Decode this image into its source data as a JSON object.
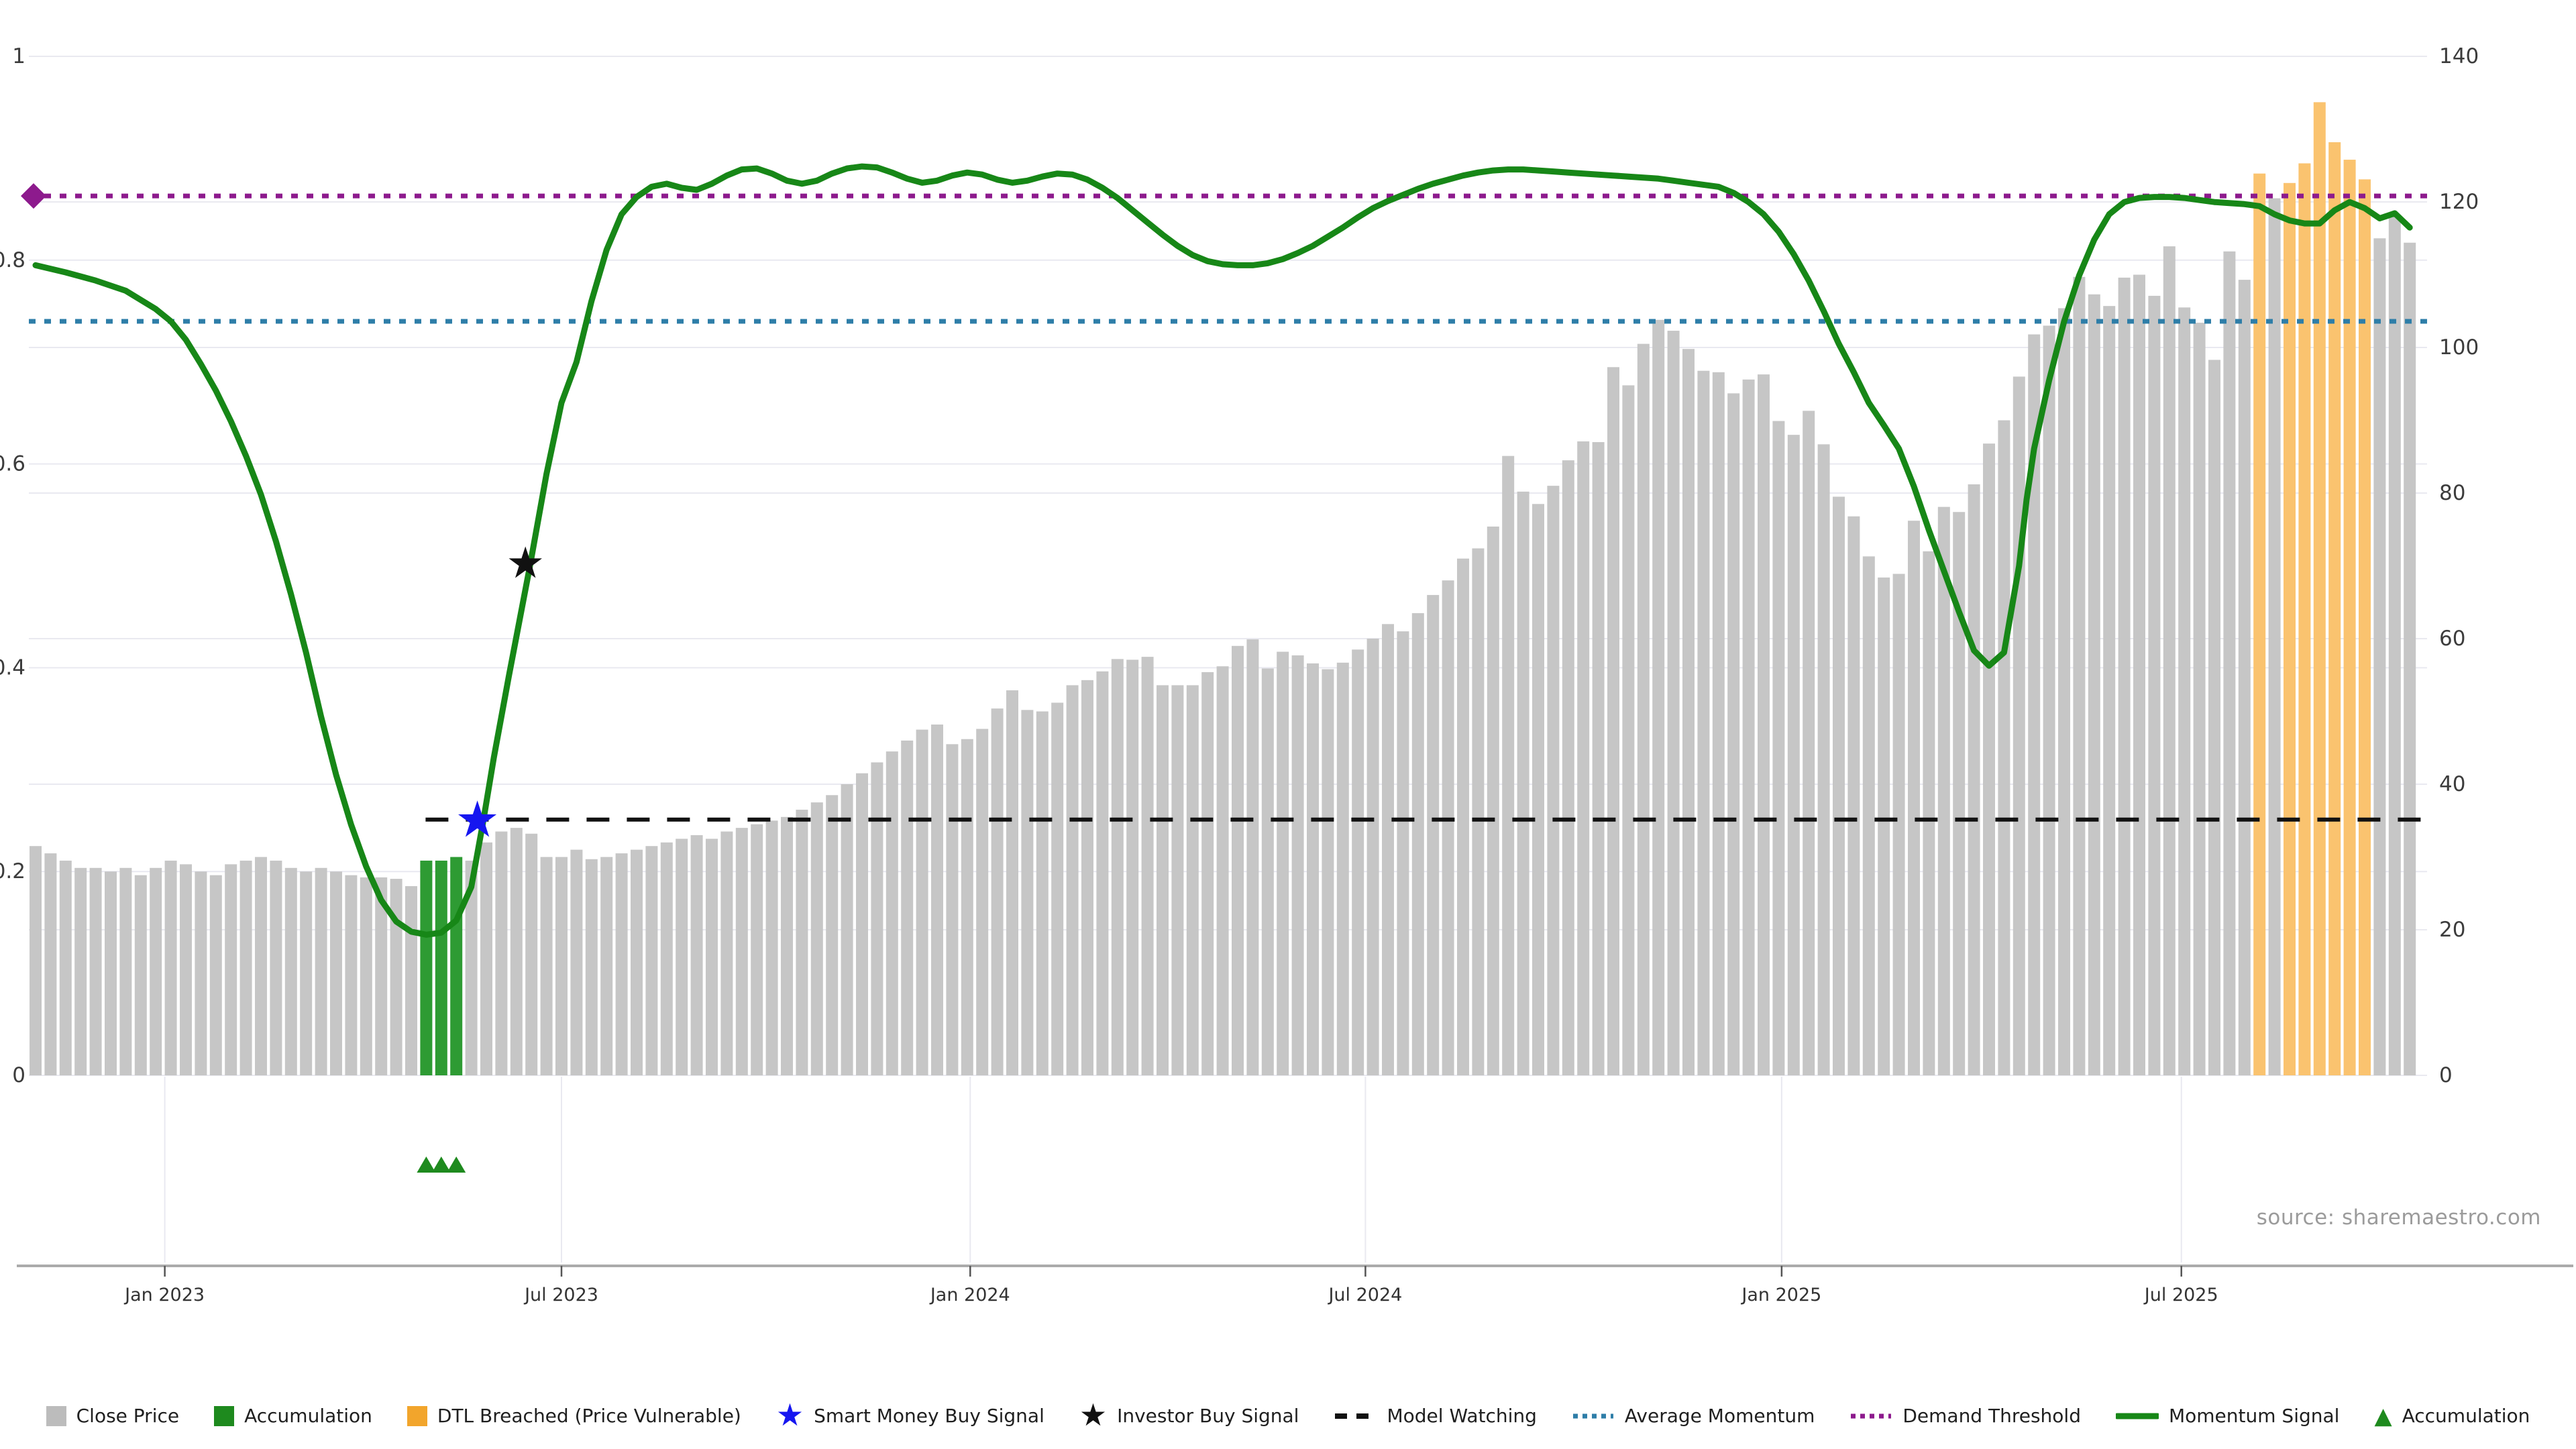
{
  "source_note": "source: sharemaestro.com",
  "colors": {
    "background": "#ffffff",
    "gridline": "#e9e9f0",
    "axis_line": "#ababab",
    "tick_color": "#555555",
    "axis_text": "#3c3c3c",
    "close_price_bar": "#c6c6c6",
    "accumulation_bar": "#2e9b33",
    "dtl_breached_bar": "#fac36f",
    "momentum_line": "#178717",
    "average_momentum_line": "#2e7ea8",
    "demand_threshold_line": "#8d1a8d",
    "model_watching_line": "#111111",
    "smart_money_star": "#1616f0",
    "investor_star": "#111111",
    "accumulation_marker": "#1e8a1e",
    "source_text": "#9b9b9b"
  },
  "chart_data": {
    "type": "bar+line",
    "title": "",
    "xlabel": "",
    "ylabel_left": "",
    "ylabel_right": "",
    "left_axis": {
      "range": [
        0,
        1
      ],
      "ticks": [
        0,
        0.2,
        0.4,
        0.6,
        0.8,
        1
      ],
      "tick_labels": [
        "0",
        "0.2",
        "0.4",
        "0.6",
        "0.8",
        "1"
      ]
    },
    "right_axis": {
      "range": [
        0,
        140
      ],
      "ticks": [
        0,
        20,
        40,
        60,
        80,
        100,
        120,
        140
      ],
      "tick_labels": [
        "0",
        "20",
        "40",
        "60",
        "80",
        "100",
        "120",
        "140"
      ]
    },
    "x_axis": {
      "tick_labels": [
        "Jan 2023",
        "Jul 2023",
        "Jan 2024",
        "Jul 2024",
        "Jan 2025",
        "Jul 2025"
      ],
      "tick_bar_index": [
        8.6,
        35.0,
        62.2,
        88.5,
        116.2,
        142.8
      ]
    },
    "grid": true,
    "legend_position": "bottom-center",
    "close_price": [
      31.5,
      30.5,
      29.5,
      28.5,
      28.5,
      28,
      28.5,
      27.5,
      28.5,
      29.5,
      29,
      28,
      27.5,
      29,
      29.5,
      30,
      29.5,
      28.5,
      28,
      28.5,
      28,
      27.5,
      27.2,
      27.2,
      27,
      26,
      29.5,
      29.5,
      30,
      29.5,
      32,
      33.5,
      34,
      33.2,
      30,
      30,
      31,
      29.7,
      30,
      30.5,
      31,
      31.5,
      32,
      32.5,
      33,
      32.5,
      33.5,
      34,
      34.5,
      35,
      35.5,
      36.5,
      37.5,
      38.5,
      40,
      41.5,
      43,
      44.5,
      46,
      47.5,
      48.2,
      45.5,
      46.2,
      47.6,
      50.4,
      52.9,
      50.2,
      50,
      51.2,
      53.6,
      54.3,
      55.5,
      57.2,
      57.1,
      57.5,
      53.6,
      53.6,
      53.6,
      55.4,
      56.2,
      59,
      59.9,
      55.9,
      58.2,
      57.7,
      56.6,
      55.8,
      56.7,
      58.5,
      60,
      62,
      61,
      63.5,
      66,
      68,
      71,
      72.4,
      75.4,
      85.1,
      80.2,
      78.5,
      81,
      84.5,
      87.1,
      87,
      97.3,
      94.8,
      100.5,
      103.8,
      102.3,
      99.8,
      96.8,
      96.6,
      93.7,
      95.6,
      96.3,
      89.9,
      88,
      91.3,
      86.7,
      79.5,
      76.8,
      71.3,
      68.4,
      68.9,
      76.2,
      72,
      78.1,
      77.4,
      81.2,
      86.8,
      90,
      96,
      101.8,
      103,
      105.4,
      109.7,
      107.3,
      105.7,
      109.6,
      110,
      107.1,
      113.9,
      105.5,
      103.4,
      98.3,
      113.2,
      109.3,
      123.9,
      120.5,
      122.6,
      125.3,
      133.7,
      128.2,
      125.8,
      123.1,
      115,
      118.2,
      114.4
    ],
    "accumulation_bar_indices": [
      26,
      27,
      28
    ],
    "dtl_breached_bar_indices": [
      148,
      150,
      151,
      152,
      153,
      154,
      155
    ],
    "accumulation_marker_indices": [
      26,
      27,
      28
    ],
    "momentum_signal_keypoints": [
      [
        0,
        0.795
      ],
      [
        2,
        0.788
      ],
      [
        4,
        0.78
      ],
      [
        6,
        0.77
      ],
      [
        8,
        0.752
      ],
      [
        9,
        0.74
      ],
      [
        10,
        0.722
      ],
      [
        11,
        0.698
      ],
      [
        12,
        0.672
      ],
      [
        13,
        0.642
      ],
      [
        14,
        0.608
      ],
      [
        15,
        0.57
      ],
      [
        16,
        0.524
      ],
      [
        17,
        0.472
      ],
      [
        18,
        0.415
      ],
      [
        19,
        0.352
      ],
      [
        20,
        0.295
      ],
      [
        21,
        0.246
      ],
      [
        22,
        0.205
      ],
      [
        23,
        0.172
      ],
      [
        24,
        0.151
      ],
      [
        25,
        0.141
      ],
      [
        26,
        0.138
      ],
      [
        27,
        0.14
      ],
      [
        28,
        0.152
      ],
      [
        29,
        0.185
      ],
      [
        29.8,
        0.25
      ],
      [
        30.5,
        0.312
      ],
      [
        31.5,
        0.392
      ],
      [
        32.9,
        0.5
      ],
      [
        34,
        0.59
      ],
      [
        35,
        0.66
      ],
      [
        36,
        0.7
      ],
      [
        37,
        0.76
      ],
      [
        38,
        0.81
      ],
      [
        39,
        0.845
      ],
      [
        40,
        0.862
      ],
      [
        41,
        0.872
      ],
      [
        42,
        0.875
      ],
      [
        43,
        0.871
      ],
      [
        44,
        0.869
      ],
      [
        45,
        0.875
      ],
      [
        46,
        0.883
      ],
      [
        47,
        0.889
      ],
      [
        48,
        0.89
      ],
      [
        49,
        0.885
      ],
      [
        50,
        0.878
      ],
      [
        51,
        0.875
      ],
      [
        52,
        0.878
      ],
      [
        53,
        0.885
      ],
      [
        54,
        0.89
      ],
      [
        55,
        0.892
      ],
      [
        56,
        0.891
      ],
      [
        57,
        0.886
      ],
      [
        58,
        0.88
      ],
      [
        59,
        0.876
      ],
      [
        60,
        0.878
      ],
      [
        61,
        0.883
      ],
      [
        62,
        0.886
      ],
      [
        63,
        0.884
      ],
      [
        64,
        0.879
      ],
      [
        65,
        0.876
      ],
      [
        66,
        0.878
      ],
      [
        67,
        0.882
      ],
      [
        68,
        0.885
      ],
      [
        69,
        0.884
      ],
      [
        70,
        0.879
      ],
      [
        71,
        0.871
      ],
      [
        72,
        0.861
      ],
      [
        73,
        0.849
      ],
      [
        74,
        0.837
      ],
      [
        75,
        0.825
      ],
      [
        76,
        0.814
      ],
      [
        77,
        0.805
      ],
      [
        78,
        0.799
      ],
      [
        79,
        0.796
      ],
      [
        80,
        0.795
      ],
      [
        81,
        0.795
      ],
      [
        82,
        0.797
      ],
      [
        83,
        0.801
      ],
      [
        84,
        0.807
      ],
      [
        85,
        0.814
      ],
      [
        86,
        0.823
      ],
      [
        87,
        0.832
      ],
      [
        88,
        0.842
      ],
      [
        89,
        0.851
      ],
      [
        90,
        0.858
      ],
      [
        91,
        0.864
      ],
      [
        92,
        0.87
      ],
      [
        93,
        0.875
      ],
      [
        94,
        0.879
      ],
      [
        95,
        0.883
      ],
      [
        96,
        0.886
      ],
      [
        97,
        0.888
      ],
      [
        98,
        0.889
      ],
      [
        99,
        0.889
      ],
      [
        100,
        0.888
      ],
      [
        101,
        0.887
      ],
      [
        102,
        0.886
      ],
      [
        103,
        0.885
      ],
      [
        104,
        0.884
      ],
      [
        105,
        0.883
      ],
      [
        106,
        0.882
      ],
      [
        107,
        0.881
      ],
      [
        108,
        0.88
      ],
      [
        109,
        0.878
      ],
      [
        110,
        0.876
      ],
      [
        111,
        0.874
      ],
      [
        112,
        0.872
      ],
      [
        113,
        0.866
      ],
      [
        114,
        0.857
      ],
      [
        115,
        0.845
      ],
      [
        116,
        0.828
      ],
      [
        117,
        0.806
      ],
      [
        118,
        0.78
      ],
      [
        119,
        0.75
      ],
      [
        120,
        0.718
      ],
      [
        121,
        0.69
      ],
      [
        122,
        0.66
      ],
      [
        123,
        0.638
      ],
      [
        124,
        0.615
      ],
      [
        125,
        0.578
      ],
      [
        126,
        0.535
      ],
      [
        127,
        0.495
      ],
      [
        128,
        0.455
      ],
      [
        129,
        0.417
      ],
      [
        130,
        0.402
      ],
      [
        131,
        0.415
      ],
      [
        132,
        0.5
      ],
      [
        132.5,
        0.565
      ],
      [
        133,
        0.615
      ],
      [
        134,
        0.682
      ],
      [
        135,
        0.74
      ],
      [
        136,
        0.785
      ],
      [
        137,
        0.82
      ],
      [
        138,
        0.845
      ],
      [
        139,
        0.857
      ],
      [
        140,
        0.861
      ],
      [
        141,
        0.862
      ],
      [
        142,
        0.862
      ],
      [
        143,
        0.861
      ],
      [
        144,
        0.859
      ],
      [
        145,
        0.857
      ],
      [
        146,
        0.856
      ],
      [
        147,
        0.855
      ],
      [
        148,
        0.853
      ],
      [
        149,
        0.845
      ],
      [
        150,
        0.839
      ],
      [
        151,
        0.836
      ],
      [
        152,
        0.836
      ],
      [
        153,
        0.849
      ],
      [
        154,
        0.857
      ],
      [
        155,
        0.851
      ],
      [
        156,
        0.841
      ],
      [
        157,
        0.846
      ],
      [
        158,
        0.832
      ]
    ],
    "average_momentum": 0.74,
    "demand_threshold": 0.863,
    "model_watching": 0.251,
    "model_watching_start_bar_index": 26,
    "smart_money_buy_signal": {
      "bar_index": 29.4,
      "value": 0.25
    },
    "investor_buy_signal": {
      "bar_index": 32.6,
      "value": 0.502
    }
  },
  "legend": {
    "items": [
      {
        "label": "Close Price",
        "type": "square",
        "color": "#bcbcbc"
      },
      {
        "label": "Accumulation",
        "type": "square",
        "color": "#1e8a1e"
      },
      {
        "label": "DTL Breached (Price Vulnerable)",
        "type": "square",
        "color": "#f2a52c"
      },
      {
        "label": "Smart Money Buy Signal",
        "type": "star",
        "color": "#1616f0"
      },
      {
        "label": "Investor Buy Signal",
        "type": "star",
        "color": "#111111"
      },
      {
        "label": "Model Watching",
        "type": "dashes",
        "color": "#111111"
      },
      {
        "label": "Average Momentum",
        "type": "dots",
        "color": "#2e7ea8"
      },
      {
        "label": "Demand Threshold",
        "type": "dots",
        "color": "#8d1a8d"
      },
      {
        "label": "Momentum Signal",
        "type": "line",
        "color": "#178717"
      },
      {
        "label": "Accumulation",
        "type": "triangle",
        "color": "#1e8a1e"
      }
    ]
  }
}
